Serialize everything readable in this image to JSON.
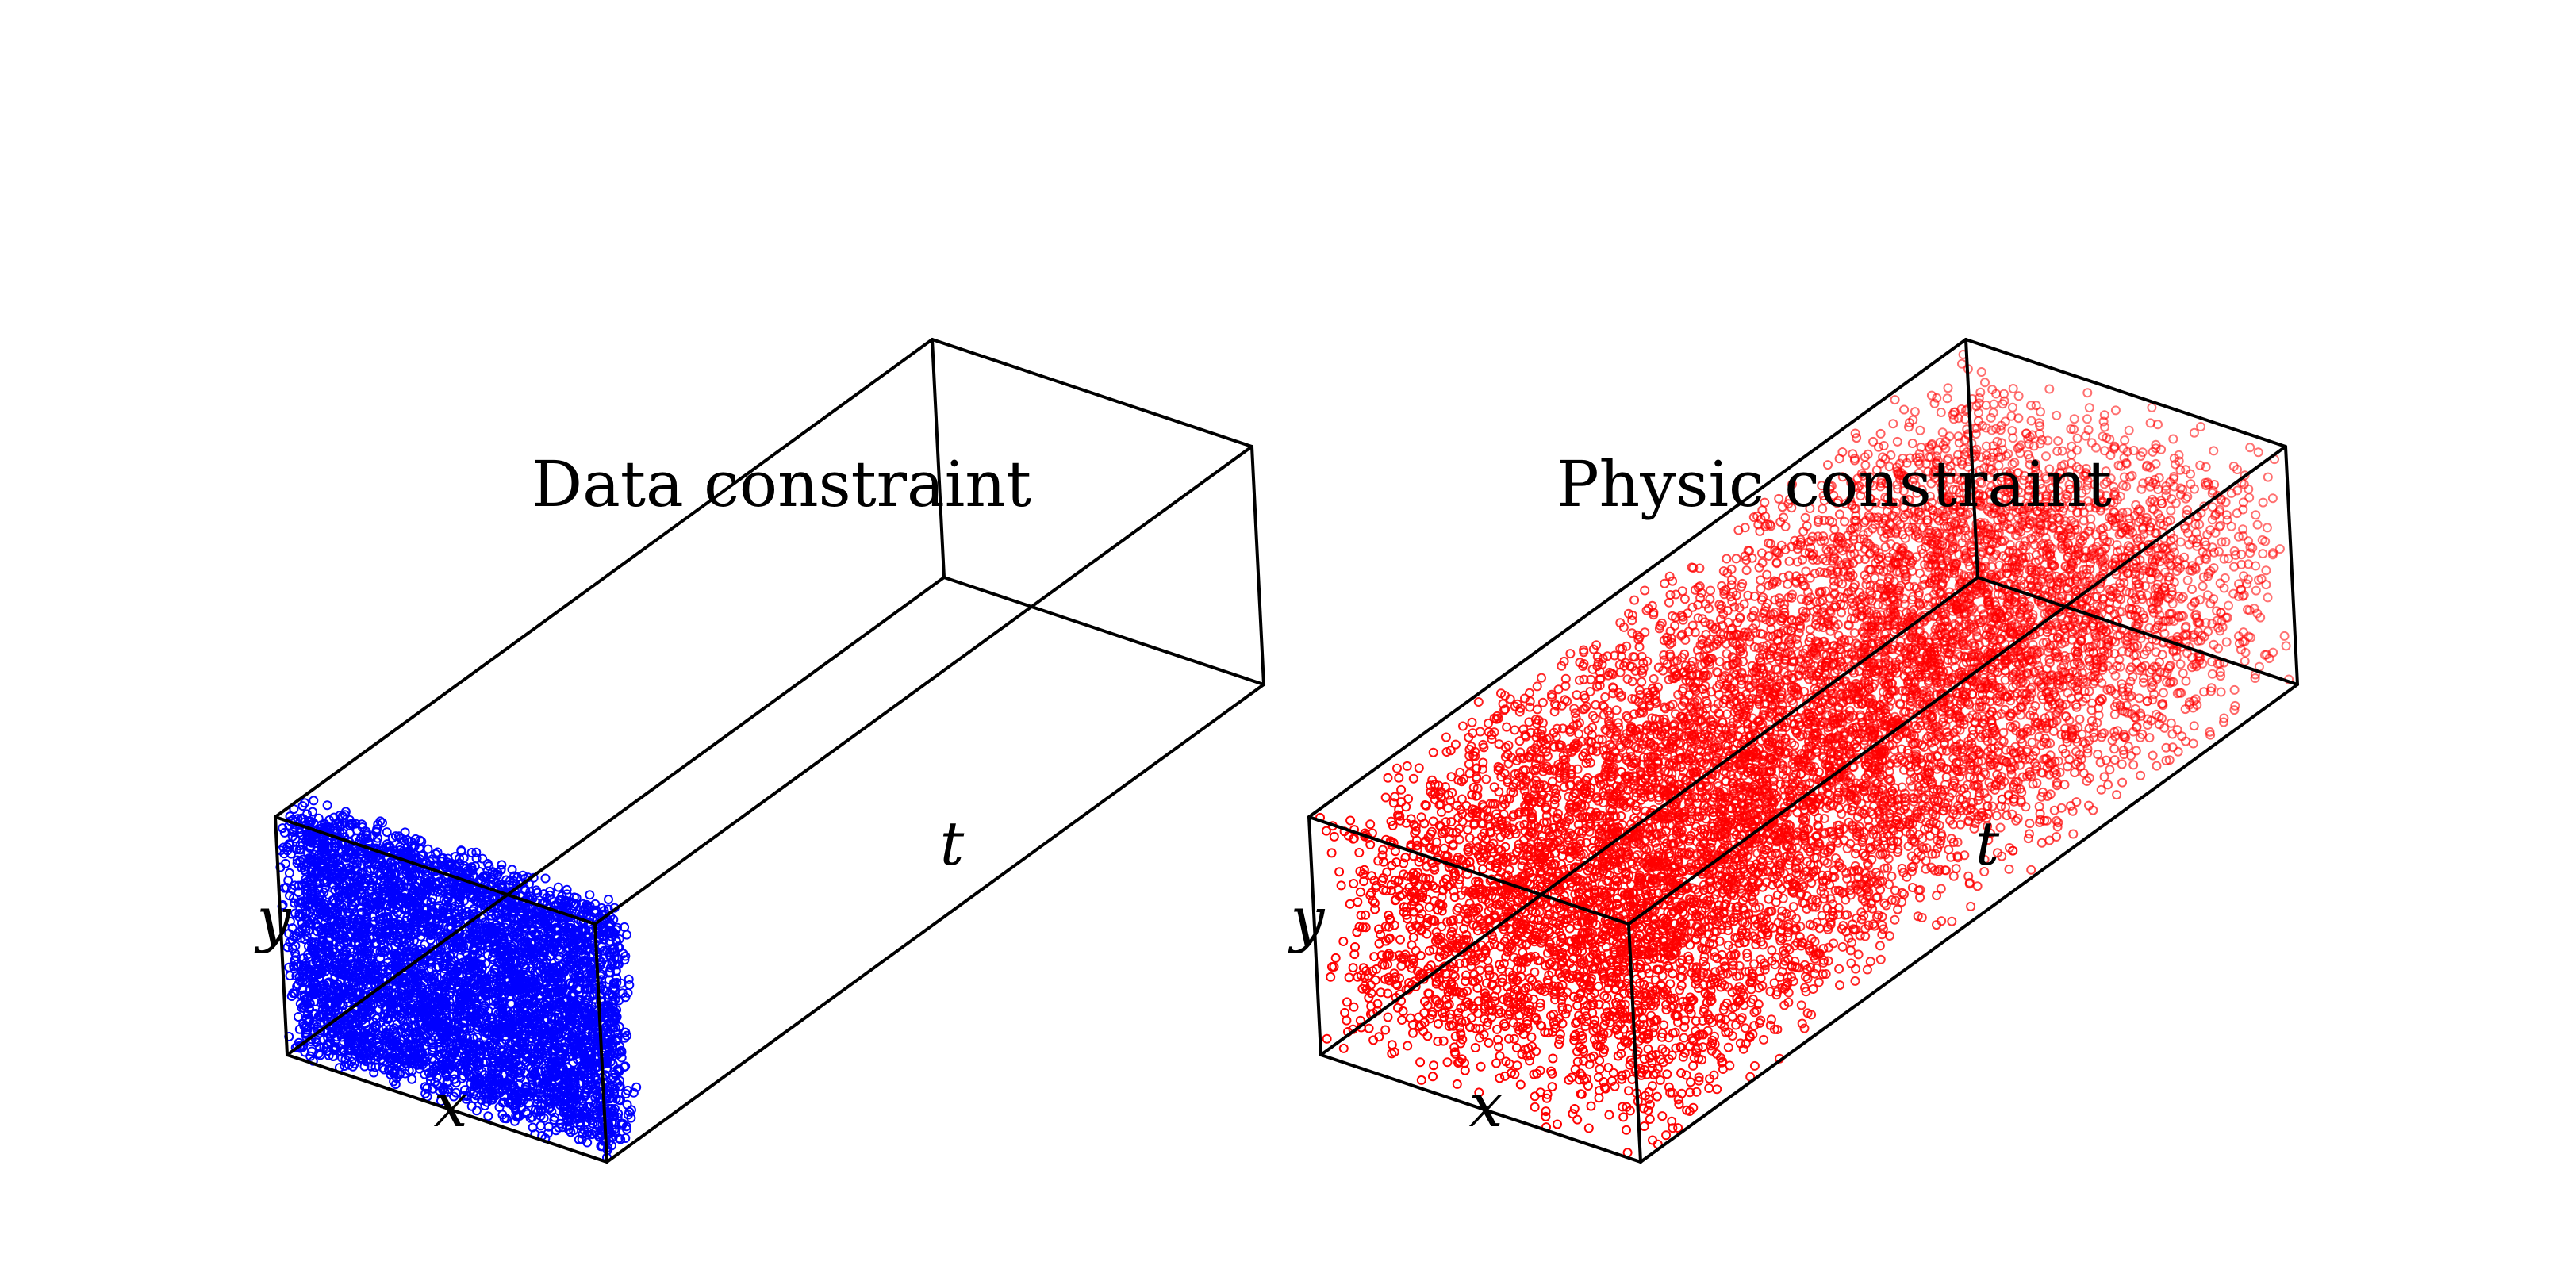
{
  "chart_data": [
    {
      "type": "scatter",
      "title": "Data constraint",
      "xlabel": "x",
      "ylabel": "y",
      "zlabel": "t",
      "marker_color": "#0000ff",
      "marker": "hollow-circle",
      "xlim": [
        0,
        1
      ],
      "ylim": [
        0,
        1
      ],
      "tlim": [
        0,
        1
      ],
      "points_distribution": {
        "x": [
          0,
          1
        ],
        "y": [
          0,
          1
        ],
        "t": [
          0,
          0.05
        ],
        "approx_count": 5000
      },
      "grid": false,
      "projection": "3d-box"
    },
    {
      "type": "scatter",
      "title": "Physic constraint",
      "xlabel": "x",
      "ylabel": "y",
      "zlabel": "t",
      "marker_color": "#ff0000",
      "marker": "hollow-circle",
      "xlim": [
        0,
        1
      ],
      "ylim": [
        0,
        1
      ],
      "tlim": [
        0,
        1
      ],
      "points_distribution": {
        "x": [
          0,
          1
        ],
        "y": [
          0,
          1
        ],
        "t": [
          0,
          1
        ],
        "approx_count": 10000
      },
      "grid": false,
      "projection": "3d-box"
    }
  ]
}
